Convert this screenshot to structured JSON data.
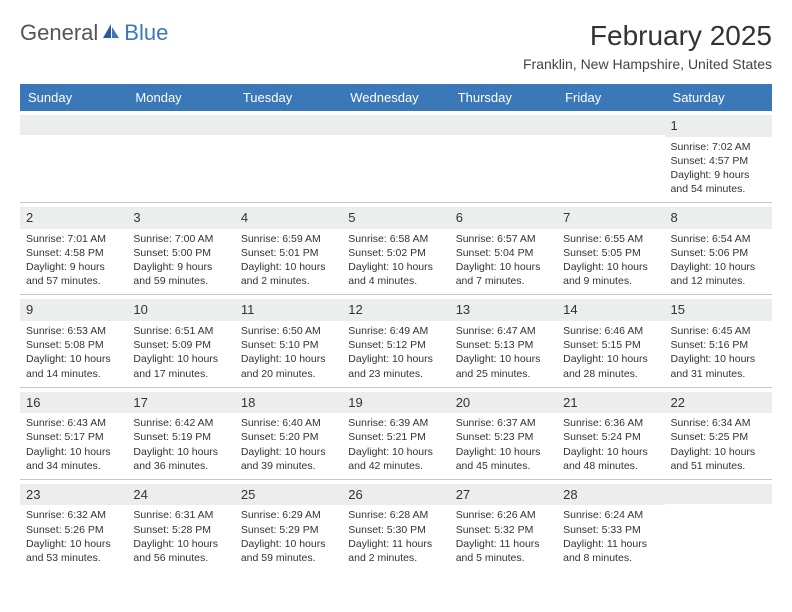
{
  "logo": {
    "text1": "General",
    "text2": "Blue"
  },
  "title": "February 2025",
  "subtitle": "Franklin, New Hampshire, United States",
  "colors": {
    "header_bg": "#3b78b8",
    "header_fg": "#ffffff",
    "row_stripe": "#eceded",
    "border": "#c8c8c8"
  },
  "day_names": [
    "Sunday",
    "Monday",
    "Tuesday",
    "Wednesday",
    "Thursday",
    "Friday",
    "Saturday"
  ],
  "weeks": [
    [
      null,
      null,
      null,
      null,
      null,
      null,
      {
        "n": "1",
        "sunrise": "Sunrise: 7:02 AM",
        "sunset": "Sunset: 4:57 PM",
        "daylight": "Daylight: 9 hours and 54 minutes."
      }
    ],
    [
      {
        "n": "2",
        "sunrise": "Sunrise: 7:01 AM",
        "sunset": "Sunset: 4:58 PM",
        "daylight": "Daylight: 9 hours and 57 minutes."
      },
      {
        "n": "3",
        "sunrise": "Sunrise: 7:00 AM",
        "sunset": "Sunset: 5:00 PM",
        "daylight": "Daylight: 9 hours and 59 minutes."
      },
      {
        "n": "4",
        "sunrise": "Sunrise: 6:59 AM",
        "sunset": "Sunset: 5:01 PM",
        "daylight": "Daylight: 10 hours and 2 minutes."
      },
      {
        "n": "5",
        "sunrise": "Sunrise: 6:58 AM",
        "sunset": "Sunset: 5:02 PM",
        "daylight": "Daylight: 10 hours and 4 minutes."
      },
      {
        "n": "6",
        "sunrise": "Sunrise: 6:57 AM",
        "sunset": "Sunset: 5:04 PM",
        "daylight": "Daylight: 10 hours and 7 minutes."
      },
      {
        "n": "7",
        "sunrise": "Sunrise: 6:55 AM",
        "sunset": "Sunset: 5:05 PM",
        "daylight": "Daylight: 10 hours and 9 minutes."
      },
      {
        "n": "8",
        "sunrise": "Sunrise: 6:54 AM",
        "sunset": "Sunset: 5:06 PM",
        "daylight": "Daylight: 10 hours and 12 minutes."
      }
    ],
    [
      {
        "n": "9",
        "sunrise": "Sunrise: 6:53 AM",
        "sunset": "Sunset: 5:08 PM",
        "daylight": "Daylight: 10 hours and 14 minutes."
      },
      {
        "n": "10",
        "sunrise": "Sunrise: 6:51 AM",
        "sunset": "Sunset: 5:09 PM",
        "daylight": "Daylight: 10 hours and 17 minutes."
      },
      {
        "n": "11",
        "sunrise": "Sunrise: 6:50 AM",
        "sunset": "Sunset: 5:10 PM",
        "daylight": "Daylight: 10 hours and 20 minutes."
      },
      {
        "n": "12",
        "sunrise": "Sunrise: 6:49 AM",
        "sunset": "Sunset: 5:12 PM",
        "daylight": "Daylight: 10 hours and 23 minutes."
      },
      {
        "n": "13",
        "sunrise": "Sunrise: 6:47 AM",
        "sunset": "Sunset: 5:13 PM",
        "daylight": "Daylight: 10 hours and 25 minutes."
      },
      {
        "n": "14",
        "sunrise": "Sunrise: 6:46 AM",
        "sunset": "Sunset: 5:15 PM",
        "daylight": "Daylight: 10 hours and 28 minutes."
      },
      {
        "n": "15",
        "sunrise": "Sunrise: 6:45 AM",
        "sunset": "Sunset: 5:16 PM",
        "daylight": "Daylight: 10 hours and 31 minutes."
      }
    ],
    [
      {
        "n": "16",
        "sunrise": "Sunrise: 6:43 AM",
        "sunset": "Sunset: 5:17 PM",
        "daylight": "Daylight: 10 hours and 34 minutes."
      },
      {
        "n": "17",
        "sunrise": "Sunrise: 6:42 AM",
        "sunset": "Sunset: 5:19 PM",
        "daylight": "Daylight: 10 hours and 36 minutes."
      },
      {
        "n": "18",
        "sunrise": "Sunrise: 6:40 AM",
        "sunset": "Sunset: 5:20 PM",
        "daylight": "Daylight: 10 hours and 39 minutes."
      },
      {
        "n": "19",
        "sunrise": "Sunrise: 6:39 AM",
        "sunset": "Sunset: 5:21 PM",
        "daylight": "Daylight: 10 hours and 42 minutes."
      },
      {
        "n": "20",
        "sunrise": "Sunrise: 6:37 AM",
        "sunset": "Sunset: 5:23 PM",
        "daylight": "Daylight: 10 hours and 45 minutes."
      },
      {
        "n": "21",
        "sunrise": "Sunrise: 6:36 AM",
        "sunset": "Sunset: 5:24 PM",
        "daylight": "Daylight: 10 hours and 48 minutes."
      },
      {
        "n": "22",
        "sunrise": "Sunrise: 6:34 AM",
        "sunset": "Sunset: 5:25 PM",
        "daylight": "Daylight: 10 hours and 51 minutes."
      }
    ],
    [
      {
        "n": "23",
        "sunrise": "Sunrise: 6:32 AM",
        "sunset": "Sunset: 5:26 PM",
        "daylight": "Daylight: 10 hours and 53 minutes."
      },
      {
        "n": "24",
        "sunrise": "Sunrise: 6:31 AM",
        "sunset": "Sunset: 5:28 PM",
        "daylight": "Daylight: 10 hours and 56 minutes."
      },
      {
        "n": "25",
        "sunrise": "Sunrise: 6:29 AM",
        "sunset": "Sunset: 5:29 PM",
        "daylight": "Daylight: 10 hours and 59 minutes."
      },
      {
        "n": "26",
        "sunrise": "Sunrise: 6:28 AM",
        "sunset": "Sunset: 5:30 PM",
        "daylight": "Daylight: 11 hours and 2 minutes."
      },
      {
        "n": "27",
        "sunrise": "Sunrise: 6:26 AM",
        "sunset": "Sunset: 5:32 PM",
        "daylight": "Daylight: 11 hours and 5 minutes."
      },
      {
        "n": "28",
        "sunrise": "Sunrise: 6:24 AM",
        "sunset": "Sunset: 5:33 PM",
        "daylight": "Daylight: 11 hours and 8 minutes."
      },
      null
    ]
  ]
}
